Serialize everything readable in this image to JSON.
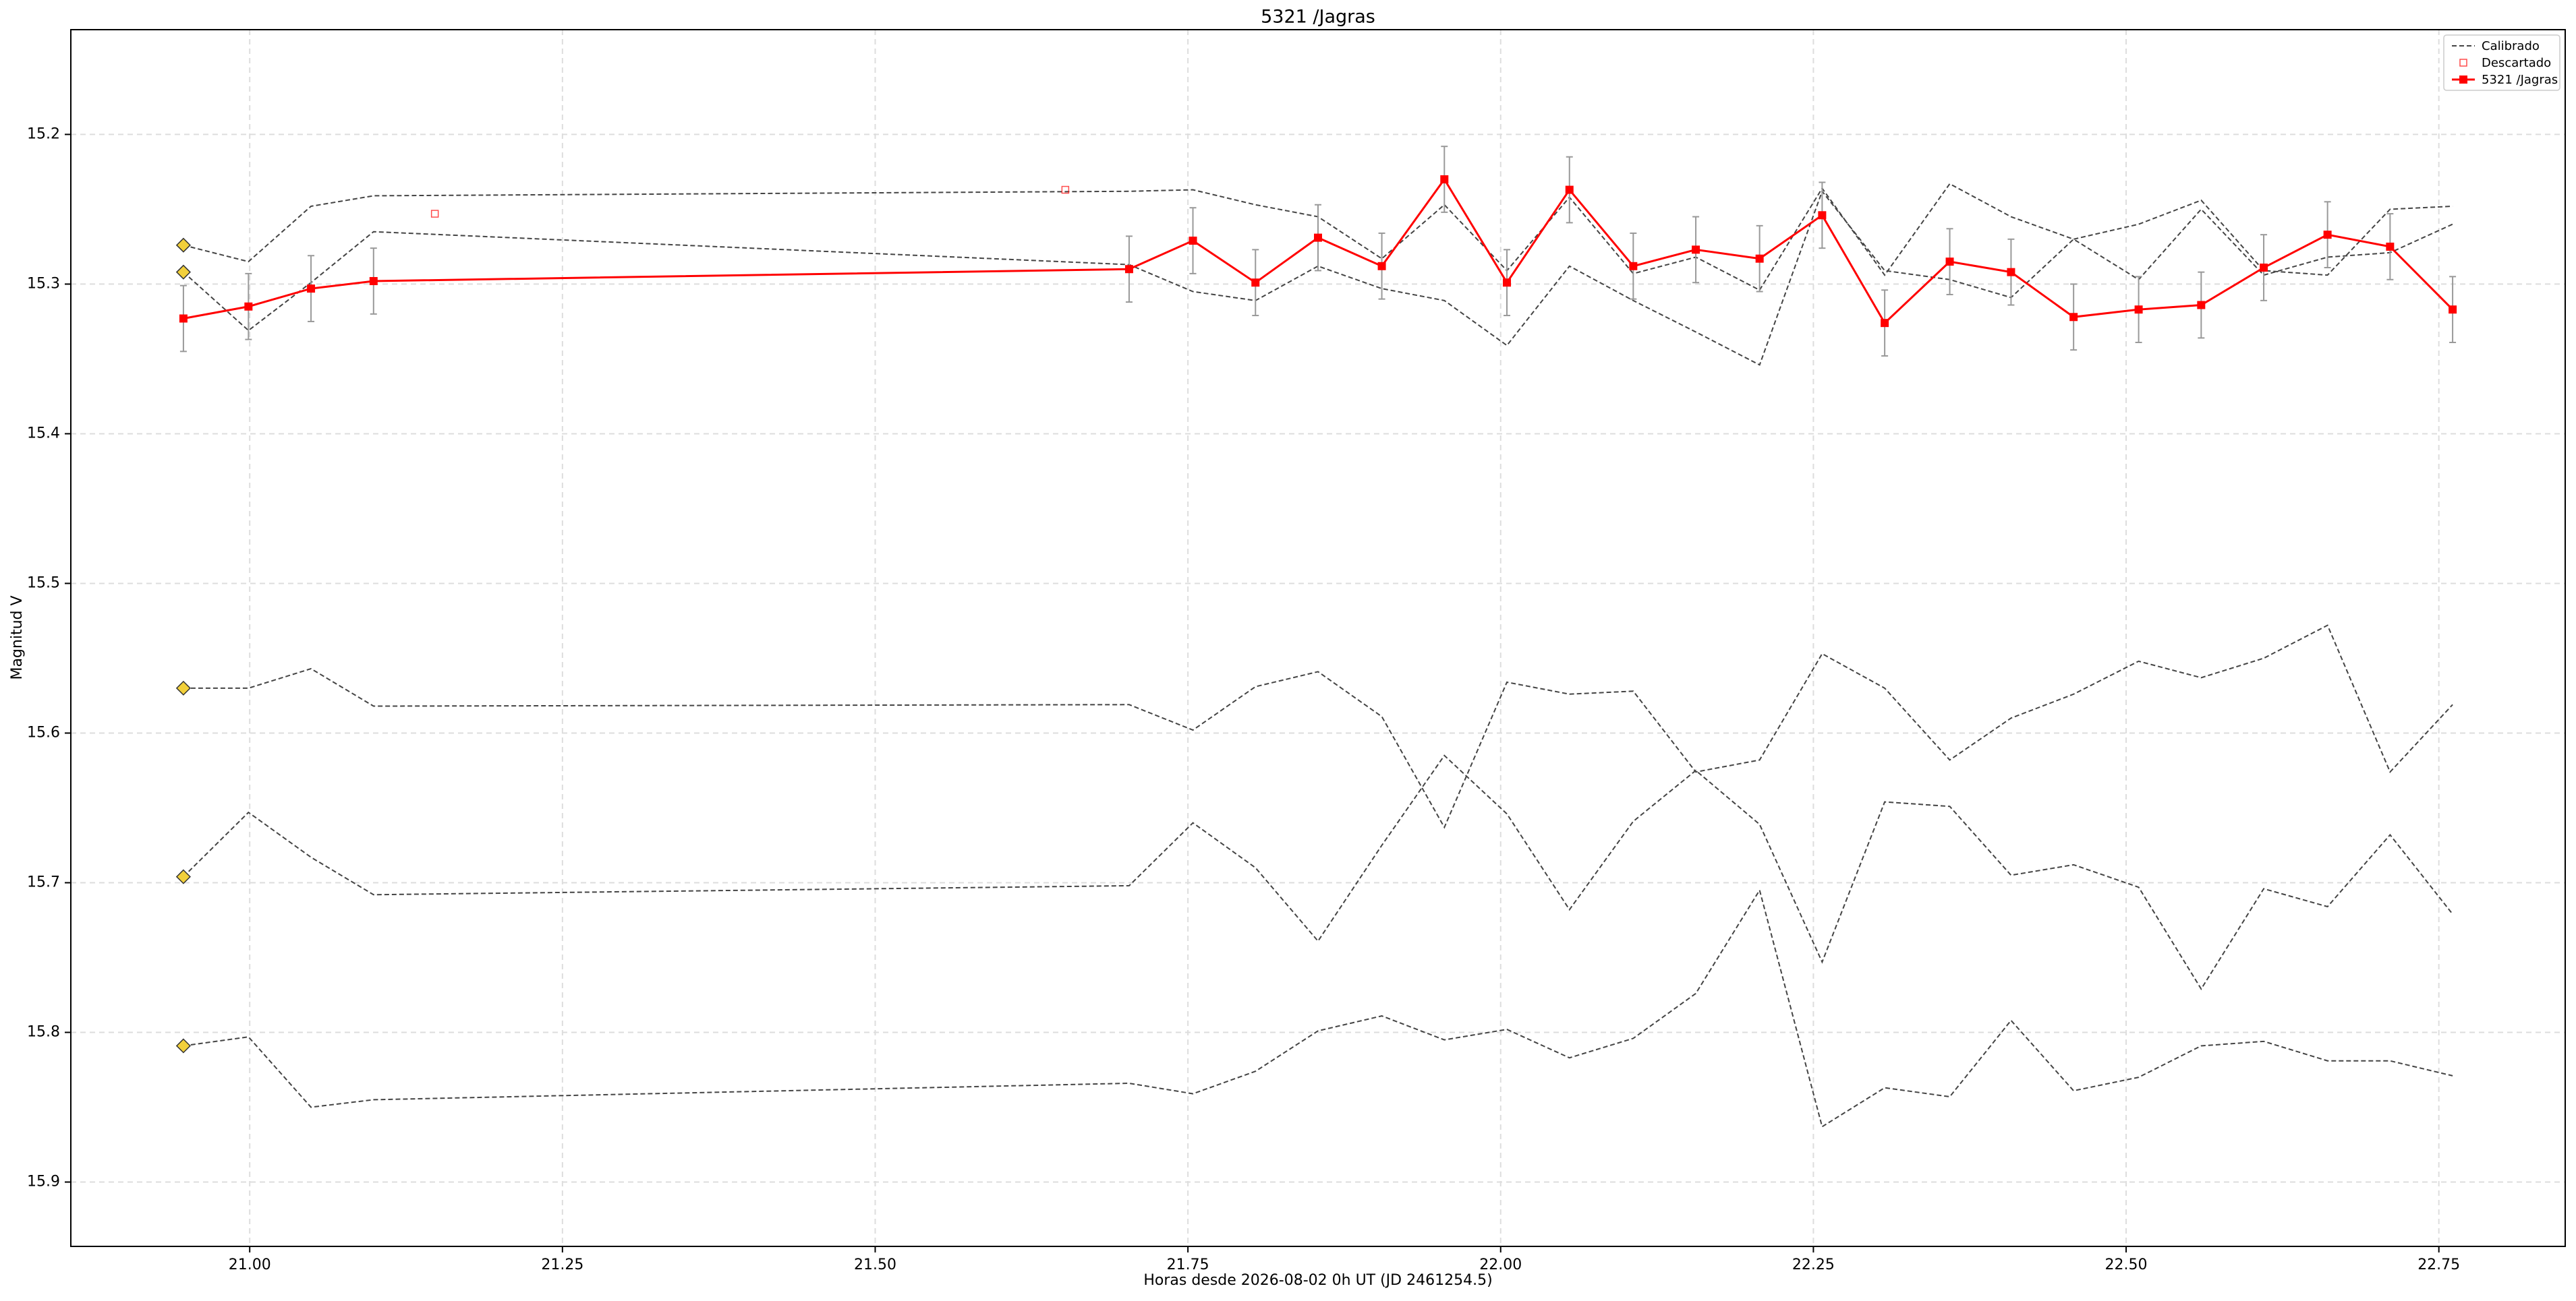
{
  "chart_data": {
    "type": "line",
    "title": "5321 /Jagras",
    "x_label": "Horas desde 2026-08-02 0h UT (JD 2461254.5)",
    "y_label": "Magnitud V",
    "xlim": [
      20.857,
      22.851
    ],
    "ylim": [
      15.943,
      15.13
    ],
    "xticks": [
      {
        "value": 21.0,
        "label": "21.00"
      },
      {
        "value": 21.25,
        "label": "21.25"
      },
      {
        "value": 21.5,
        "label": "21.50"
      },
      {
        "value": 21.75,
        "label": "21.75"
      },
      {
        "value": 22.0,
        "label": "22.00"
      },
      {
        "value": 22.25,
        "label": "22.25"
      },
      {
        "value": 22.5,
        "label": "22.50"
      },
      {
        "value": 22.75,
        "label": "22.75"
      }
    ],
    "yticks": [
      15.2,
      15.3,
      15.4,
      15.5,
      15.6,
      15.7,
      15.8,
      15.9
    ],
    "grid": true,
    "legend": "upper right",
    "x": [
      20.947,
      20.999,
      21.049,
      21.099,
      21.703,
      21.754,
      21.804,
      21.854,
      21.905,
      21.955,
      22.005,
      22.055,
      22.106,
      22.156,
      22.207,
      22.257,
      22.307,
      22.359,
      22.408,
      22.458,
      22.51,
      22.56,
      22.61,
      22.661,
      22.711,
      22.761
    ],
    "calibrated": {
      "name": "Calibrado",
      "color": "#444444",
      "start_marker_color": "#f2d03b",
      "series": [
        [
          15.274,
          15.285,
          15.248,
          15.241,
          15.238,
          15.237,
          15.247,
          15.255,
          15.283,
          15.247,
          15.291,
          15.242,
          15.293,
          15.282,
          15.304,
          15.236,
          15.294,
          15.233,
          15.255,
          15.27,
          15.26,
          15.244,
          15.291,
          15.294,
          15.25,
          15.248
        ],
        [
          15.292,
          15.331,
          15.299,
          15.265,
          15.287,
          15.305,
          15.311,
          15.288,
          15.303,
          15.311,
          15.341,
          15.288,
          15.311,
          15.332,
          15.354,
          15.238,
          15.291,
          15.297,
          15.309,
          15.27,
          15.297,
          15.25,
          15.294,
          15.282,
          15.279,
          15.26
        ],
        [
          15.57,
          15.57,
          15.557,
          15.582,
          15.581,
          15.598,
          15.569,
          15.559,
          15.589,
          15.663,
          15.566,
          15.574,
          15.572,
          15.626,
          15.618,
          15.547,
          15.57,
          15.618,
          15.59,
          15.574,
          15.552,
          15.563,
          15.55,
          15.528,
          15.626,
          15.581
        ],
        [
          15.696,
          15.653,
          15.683,
          15.708,
          15.702,
          15.66,
          15.69,
          15.739,
          15.675,
          15.615,
          15.654,
          15.718,
          15.659,
          15.625,
          15.661,
          15.753,
          15.646,
          15.649,
          15.695,
          15.688,
          15.703,
          15.771,
          15.704,
          15.716,
          15.668,
          15.721
        ],
        [
          15.809,
          15.803,
          15.85,
          15.845,
          15.834,
          15.841,
          15.826,
          15.799,
          15.789,
          15.805,
          15.798,
          15.817,
          15.804,
          15.774,
          15.705,
          15.863,
          15.837,
          15.843,
          15.792,
          15.839,
          15.83,
          15.809,
          15.806,
          15.819,
          15.819,
          15.829
        ]
      ]
    },
    "discarded": {
      "name": "Descartado",
      "color": "#ff0000",
      "x": [
        21.148,
        21.652
      ],
      "values": [
        15.253,
        15.237
      ]
    },
    "target": {
      "name": "5321 /Jagras",
      "color": "#ff0000",
      "error_color": "#999999",
      "values": [
        15.323,
        15.315,
        15.303,
        15.298,
        15.29,
        15.271,
        15.299,
        15.269,
        15.288,
        15.23,
        15.299,
        15.237,
        15.288,
        15.277,
        15.283,
        15.254,
        15.326,
        15.285,
        15.292,
        15.322,
        15.317,
        15.314,
        15.289,
        15.267,
        15.275,
        15.317
      ],
      "errors": [
        0.022,
        0.022,
        0.022,
        0.022,
        0.022,
        0.022,
        0.022,
        0.022,
        0.022,
        0.022,
        0.022,
        0.022,
        0.022,
        0.022,
        0.022,
        0.022,
        0.022,
        0.022,
        0.022,
        0.022,
        0.022,
        0.022,
        0.022,
        0.022,
        0.022,
        0.022
      ]
    }
  }
}
